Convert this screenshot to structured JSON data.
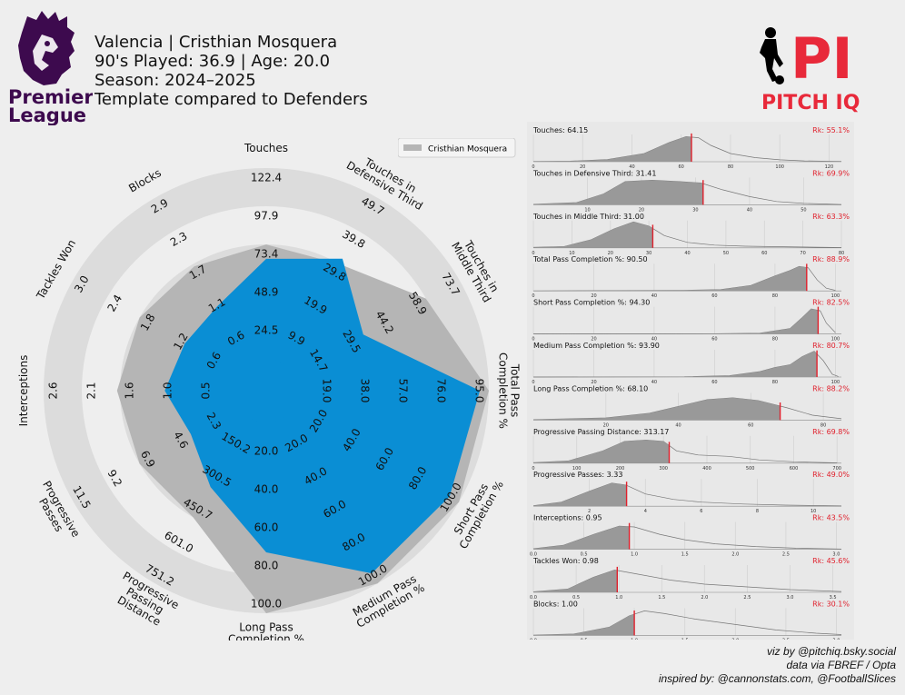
{
  "header": {
    "line1": "Valencia | Cristhian Mosquera",
    "line2": "90's Played: 36.9 | Age: 20.0",
    "line3": "Season: 2024–2025",
    "line4": "Template compared to Defenders"
  },
  "league_logo": {
    "text1": "Premier",
    "text2": "League",
    "color": "#3d0a4e"
  },
  "brand_logo": {
    "letters": "PI",
    "text": "PITCH IQ",
    "color": "#e8293a"
  },
  "legend": {
    "label": "Cristhian Mosquera"
  },
  "credits": {
    "line1": "viz by @pitchiq.bsky.social",
    "line2": "data via FBREF / Opta",
    "line3": "inspired by: @cannonstats.com, @FootballSlices"
  },
  "colors": {
    "player": "#0a8ed4",
    "comparison": "#b5b5b5",
    "ring": "#dcdcdc",
    "marker": "#e0202c",
    "kde": "#999999"
  },
  "chart_data": [
    {
      "type": "radar",
      "series": [
        {
          "name": "Cristhian Mosquera",
          "values": [
            64.15,
            31.41,
            31.0,
            90.5,
            94.3,
            93.9,
            68.1,
            313.17,
            3.33,
            0.95,
            0.98,
            1.0
          ]
        },
        {
          "name": "",
          "values": [
            73.4,
            29.8,
            58.9,
            95.0,
            100.0,
            100.0,
            100.0,
            450.7,
            6.9,
            1.6,
            1.8,
            1.7
          ]
        }
      ],
      "parameters": [
        {
          "label": [
            "Touches"
          ],
          "ticks": [
            "24.5",
            "48.9",
            "73.4",
            "97.9",
            "122.4"
          ]
        },
        {
          "label": [
            "Touches in",
            "Defensive Third"
          ],
          "ticks": [
            "9.9",
            "19.9",
            "29.8",
            "39.8",
            "49.7"
          ]
        },
        {
          "label": [
            "Touches in",
            "Middle Third"
          ],
          "ticks": [
            "14.7",
            "29.5",
            "44.2",
            "58.9",
            "73.7"
          ]
        },
        {
          "label": [
            "Total Pass",
            "Completion %"
          ],
          "ticks": [
            "19.0",
            "38.0",
            "57.0",
            "76.0",
            "95.0"
          ]
        },
        {
          "label": [
            "Short Pass",
            "Completion %"
          ],
          "ticks": [
            "20.0",
            "40.0",
            "60.0",
            "80.0",
            "100.0"
          ]
        },
        {
          "label": [
            "Medium Pass",
            "Completion %"
          ],
          "ticks": [
            "20.0",
            "40.0",
            "60.0",
            "80.0",
            "100.0"
          ]
        },
        {
          "label": [
            "Long Pass",
            "Completion %"
          ],
          "ticks": [
            "20.0",
            "40.0",
            "60.0",
            "80.0",
            "100.0"
          ]
        },
        {
          "label": [
            "Progressive",
            "Passing",
            "Distance"
          ],
          "ticks": [
            "150.2",
            "300.5",
            "450.7",
            "601.0",
            "751.2"
          ]
        },
        {
          "label": [
            "Progressive",
            "Passes"
          ],
          "ticks": [
            "2.3",
            "4.6",
            "6.9",
            "9.2",
            "11.5"
          ]
        },
        {
          "label": [
            "Interceptions"
          ],
          "ticks": [
            "0.5",
            "1.0",
            "1.6",
            "2.1",
            "2.6"
          ]
        },
        {
          "label": [
            "Tackles Won"
          ],
          "ticks": [
            "0.6",
            "1.2",
            "1.8",
            "2.4",
            "3.0"
          ]
        },
        {
          "label": [
            "Blocks"
          ],
          "ticks": [
            "0.6",
            "1.1",
            "1.7",
            "2.3",
            "2.9"
          ]
        }
      ]
    },
    {
      "type": "area",
      "panels": [
        {
          "label": "Touches: 64.15",
          "rank": "Rk: 55.1%",
          "value": 64.15,
          "xlim": [
            0,
            125
          ],
          "ticks": [
            "0",
            "20",
            "40",
            "60",
            "80",
            "100",
            "120"
          ],
          "kde": [
            [
              0,
              0.01
            ],
            [
              15,
              0.02
            ],
            [
              30,
              0.08
            ],
            [
              45,
              0.3
            ],
            [
              55,
              0.7
            ],
            [
              62,
              0.92
            ],
            [
              67,
              0.88
            ],
            [
              72,
              0.6
            ],
            [
              80,
              0.3
            ],
            [
              90,
              0.15
            ],
            [
              100,
              0.07
            ],
            [
              110,
              0.03
            ],
            [
              125,
              0.01
            ]
          ]
        },
        {
          "label": "Touches in Defensive Third: 31.41",
          "rank": "Rk: 69.9%",
          "value": 31.41,
          "xlim": [
            0,
            57
          ],
          "ticks": [
            "10",
            "20",
            "30",
            "40",
            "50"
          ],
          "kde": [
            [
              0,
              0.02
            ],
            [
              8,
              0.08
            ],
            [
              13,
              0.4
            ],
            [
              17,
              0.85
            ],
            [
              22,
              0.9
            ],
            [
              27,
              0.85
            ],
            [
              31,
              0.8
            ],
            [
              35,
              0.55
            ],
            [
              40,
              0.3
            ],
            [
              45,
              0.12
            ],
            [
              50,
              0.05
            ],
            [
              57,
              0.01
            ]
          ]
        },
        {
          "label": "Touches in Middle Third: 31.00",
          "rank": "Rk: 63.3%",
          "value": 31.0,
          "xlim": [
            0,
            80
          ],
          "ticks": [
            "0",
            "10",
            "20",
            "30",
            "40",
            "50",
            "60",
            "70",
            "80"
          ],
          "kde": [
            [
              0,
              0.02
            ],
            [
              8,
              0.05
            ],
            [
              15,
              0.3
            ],
            [
              21,
              0.7
            ],
            [
              26,
              0.95
            ],
            [
              30,
              0.8
            ],
            [
              34,
              0.45
            ],
            [
              40,
              0.2
            ],
            [
              47,
              0.1
            ],
            [
              55,
              0.06
            ],
            [
              65,
              0.04
            ],
            [
              80,
              0.01
            ]
          ]
        },
        {
          "label": "Total Pass Completion %: 90.50",
          "rank": "Rk: 88.9%",
          "value": 90.5,
          "xlim": [
            0,
            102
          ],
          "ticks": [
            "0",
            "20",
            "40",
            "60",
            "80",
            "100"
          ],
          "kde": [
            [
              0,
              0
            ],
            [
              50,
              0.02
            ],
            [
              62,
              0.05
            ],
            [
              72,
              0.2
            ],
            [
              80,
              0.55
            ],
            [
              85,
              0.75
            ],
            [
              88,
              0.9
            ],
            [
              91,
              0.85
            ],
            [
              94,
              0.4
            ],
            [
              97,
              0.1
            ],
            [
              100,
              0.02
            ]
          ]
        },
        {
          "label": "Short Pass Completion %: 94.30",
          "rank": "Rk: 82.5%",
          "value": 94.3,
          "xlim": [
            0,
            102
          ],
          "ticks": [
            "0",
            "20",
            "40",
            "60",
            "80",
            "100"
          ],
          "kde": [
            [
              0,
              0
            ],
            [
              60,
              0.01
            ],
            [
              75,
              0.03
            ],
            [
              85,
              0.2
            ],
            [
              89,
              0.6
            ],
            [
              92,
              0.92
            ],
            [
              95,
              0.85
            ],
            [
              97,
              0.4
            ],
            [
              100,
              0.05
            ]
          ]
        },
        {
          "label": "Medium Pass Completion %: 93.90",
          "rank": "Rk: 80.7%",
          "value": 93.9,
          "xlim": [
            0,
            102
          ],
          "ticks": [
            "0",
            "20",
            "40",
            "60",
            "80",
            "100"
          ],
          "kde": [
            [
              0,
              0
            ],
            [
              50,
              0.01
            ],
            [
              65,
              0.05
            ],
            [
              75,
              0.2
            ],
            [
              80,
              0.35
            ],
            [
              85,
              0.45
            ],
            [
              89,
              0.75
            ],
            [
              93,
              0.95
            ],
            [
              96,
              0.6
            ],
            [
              99,
              0.1
            ],
            [
              101,
              0.02
            ]
          ]
        },
        {
          "label": "Long Pass Completion %: 68.10",
          "rank": "Rk: 88.2%",
          "value": 68.1,
          "xlim": [
            0,
            85
          ],
          "ticks": [
            "20",
            "40",
            "60",
            "80"
          ],
          "kde": [
            [
              0,
              0.02
            ],
            [
              20,
              0.08
            ],
            [
              32,
              0.25
            ],
            [
              40,
              0.5
            ],
            [
              48,
              0.75
            ],
            [
              55,
              0.82
            ],
            [
              62,
              0.72
            ],
            [
              70,
              0.45
            ],
            [
              77,
              0.18
            ],
            [
              85,
              0.05
            ]
          ]
        },
        {
          "label": "Progressive Passing Distance: 313.17",
          "rank": "Rk: 69.8%",
          "value": 313.17,
          "xlim": [
            0,
            710
          ],
          "ticks": [
            "0",
            "100",
            "200",
            "300",
            "400",
            "500",
            "600",
            "700"
          ],
          "kde": [
            [
              0,
              0.02
            ],
            [
              80,
              0.08
            ],
            [
              160,
              0.45
            ],
            [
              210,
              0.8
            ],
            [
              260,
              0.85
            ],
            [
              300,
              0.8
            ],
            [
              330,
              0.45
            ],
            [
              380,
              0.3
            ],
            [
              450,
              0.25
            ],
            [
              520,
              0.12
            ],
            [
              600,
              0.05
            ],
            [
              700,
              0.01
            ]
          ]
        },
        {
          "label": "Progressive Passes: 3.33",
          "rank": "Rk: 49.0%",
          "value": 3.33,
          "xlim": [
            0,
            11
          ],
          "ticks": [
            "2",
            "4",
            "6",
            "8",
            "10"
          ],
          "kde": [
            [
              0,
              0.02
            ],
            [
              1,
              0.15
            ],
            [
              2,
              0.55
            ],
            [
              2.8,
              0.85
            ],
            [
              3.3,
              0.78
            ],
            [
              4,
              0.45
            ],
            [
              5,
              0.25
            ],
            [
              6,
              0.15
            ],
            [
              7.5,
              0.08
            ],
            [
              9,
              0.04
            ],
            [
              11,
              0.01
            ]
          ]
        },
        {
          "label": "Interceptions: 0.95",
          "rank": "Rk: 43.5%",
          "value": 0.95,
          "xlim": [
            0,
            3.05
          ],
          "ticks": [
            "0.0",
            "0.5",
            "1.0",
            "1.5",
            "2.0",
            "2.5",
            "3.0"
          ],
          "kde": [
            [
              0,
              0.02
            ],
            [
              0.3,
              0.15
            ],
            [
              0.6,
              0.55
            ],
            [
              0.85,
              0.85
            ],
            [
              1.0,
              0.82
            ],
            [
              1.25,
              0.55
            ],
            [
              1.5,
              0.35
            ],
            [
              1.8,
              0.2
            ],
            [
              2.2,
              0.1
            ],
            [
              2.6,
              0.04
            ],
            [
              3.05,
              0.01
            ]
          ]
        },
        {
          "label": "Tackles Won: 0.98",
          "rank": "Rk: 45.6%",
          "value": 0.98,
          "xlim": [
            0,
            3.6
          ],
          "ticks": [
            "0.0",
            "0.5",
            "1.0",
            "1.5",
            "2.0",
            "2.5",
            "3.0",
            "3.5"
          ],
          "kde": [
            [
              0,
              0.02
            ],
            [
              0.4,
              0.12
            ],
            [
              0.7,
              0.55
            ],
            [
              0.95,
              0.82
            ],
            [
              1.2,
              0.68
            ],
            [
              1.6,
              0.45
            ],
            [
              2.0,
              0.3
            ],
            [
              2.5,
              0.2
            ],
            [
              3.0,
              0.1
            ],
            [
              3.6,
              0.03
            ]
          ]
        },
        {
          "label": "Blocks: 1.00",
          "rank": "Rk: 30.1%",
          "value": 1.0,
          "xlim": [
            0,
            3.05
          ],
          "ticks": [
            "0.0",
            "0.5",
            "1.0",
            "1.5",
            "2.0",
            "2.5",
            "3.0"
          ],
          "kde": [
            [
              0,
              0.01
            ],
            [
              0.4,
              0.05
            ],
            [
              0.75,
              0.3
            ],
            [
              0.95,
              0.72
            ],
            [
              1.1,
              0.9
            ],
            [
              1.3,
              0.8
            ],
            [
              1.6,
              0.6
            ],
            [
              2.0,
              0.4
            ],
            [
              2.4,
              0.2
            ],
            [
              2.8,
              0.08
            ],
            [
              3.05,
              0.03
            ]
          ]
        }
      ]
    }
  ]
}
